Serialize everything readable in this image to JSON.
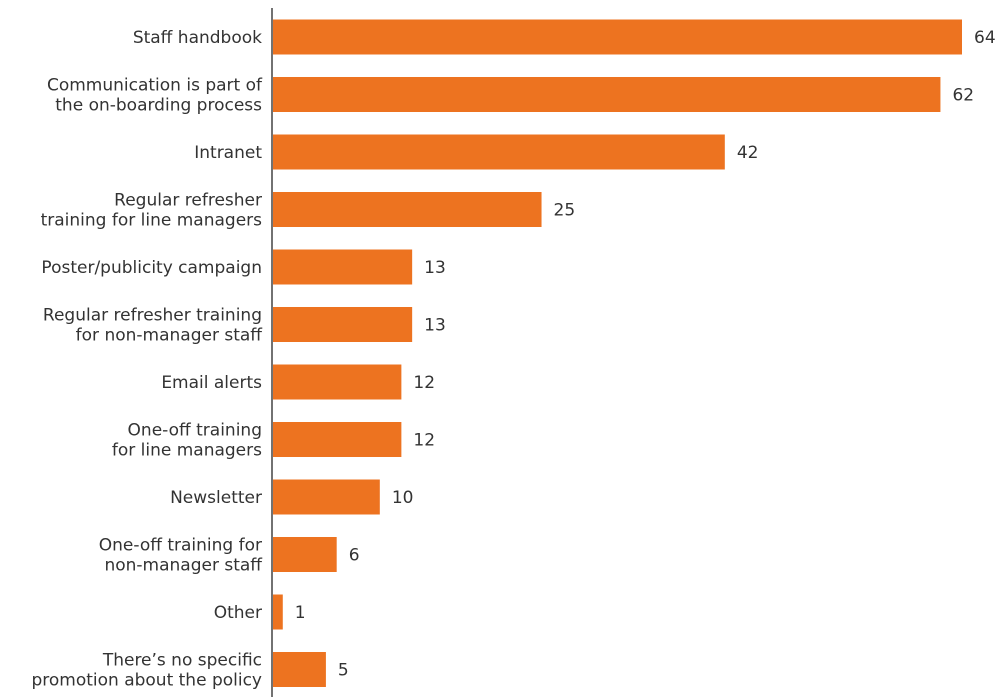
{
  "chart_data": {
    "type": "bar",
    "orientation": "horizontal",
    "categories": [
      [
        "Staff handbook"
      ],
      [
        "Communication is part of",
        "the on-boarding process"
      ],
      [
        "Intranet"
      ],
      [
        "Regular refresher",
        "training for line managers"
      ],
      [
        "Poster/publicity campaign"
      ],
      [
        "Regular refresher training",
        "for non-manager staff"
      ],
      [
        "Email alerts"
      ],
      [
        "One-off training",
        "for line managers"
      ],
      [
        "Newsletter"
      ],
      [
        "One-off training for",
        "non-manager staff"
      ],
      [
        "Other"
      ],
      [
        "There’s no specific",
        "promotion about the policy"
      ]
    ],
    "values": [
      64,
      62,
      42,
      25,
      13,
      13,
      12,
      12,
      10,
      6,
      1,
      5
    ],
    "title": "",
    "xlabel": "",
    "ylabel": "",
    "xlim": [
      0,
      64
    ],
    "grid": false,
    "legend": "none",
    "colors": {
      "bar": "#ED7320",
      "axis": "#444444",
      "text": "#333333"
    }
  }
}
